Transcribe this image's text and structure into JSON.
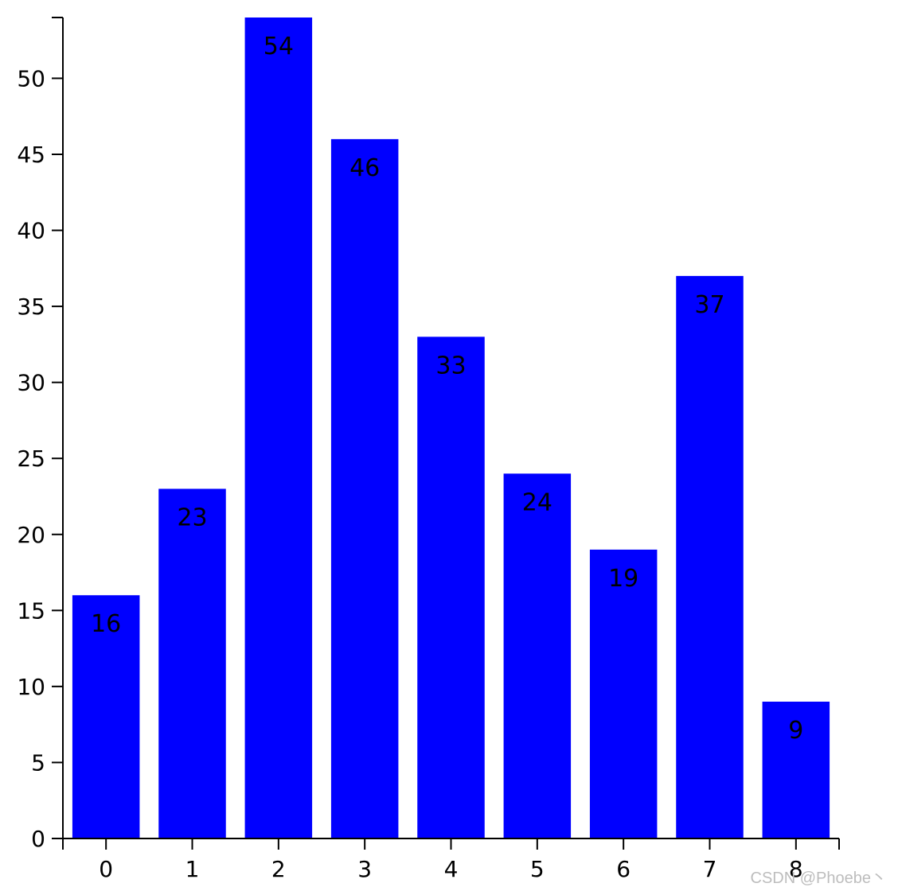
{
  "chart_data": {
    "type": "bar",
    "categories": [
      "0",
      "1",
      "2",
      "3",
      "4",
      "5",
      "6",
      "7",
      "8"
    ],
    "values": [
      16,
      23,
      54,
      46,
      33,
      24,
      19,
      37,
      9
    ],
    "title": "",
    "xlabel": "",
    "ylabel": "",
    "ylim": [
      0,
      54
    ],
    "yticks": [
      0,
      5,
      10,
      15,
      20,
      25,
      30,
      35,
      40,
      45,
      50
    ],
    "grid": false,
    "legend": "none",
    "bar_color": "#0000ff",
    "data_labels": true
  },
  "watermark": "CSDN @Phoebe丶"
}
